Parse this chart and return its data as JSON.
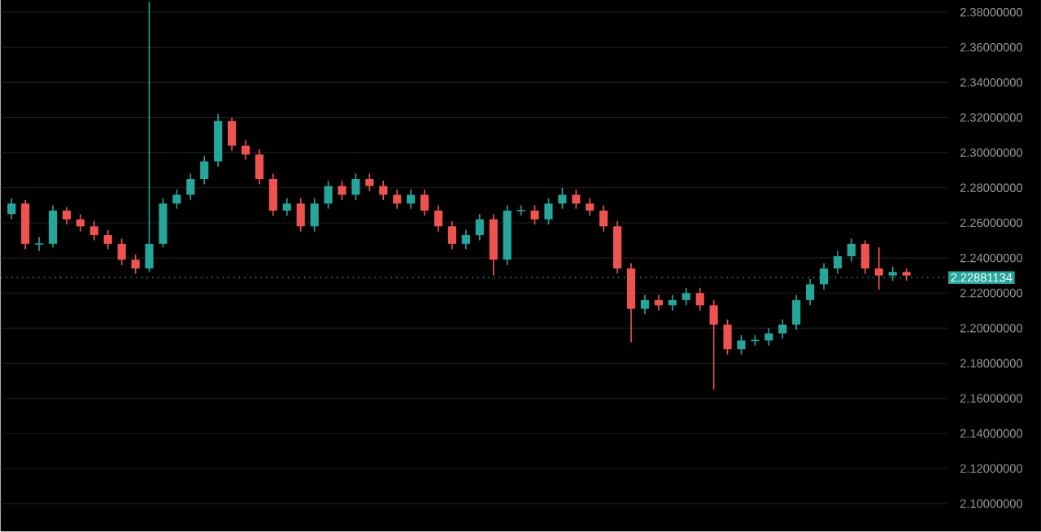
{
  "chart_data": {
    "type": "candlestick",
    "categories": [
      null,
      null,
      null,
      null,
      null,
      null,
      null,
      null,
      null,
      null,
      null,
      null,
      null,
      null,
      null,
      null,
      null,
      null,
      null,
      null,
      null,
      null,
      null,
      null,
      null,
      null,
      null,
      null,
      null,
      null,
      null,
      null,
      null,
      null,
      null,
      null,
      null,
      null,
      null,
      null,
      null,
      null,
      null,
      null,
      null,
      null,
      null,
      null,
      null,
      null,
      null,
      null,
      null,
      null,
      null,
      null,
      null,
      null,
      null,
      null,
      null,
      null,
      null,
      null,
      null,
      null
    ],
    "ohlc": [
      [
        2.265,
        2.274,
        2.262,
        2.271
      ],
      [
        2.271,
        2.273,
        2.245,
        2.248
      ],
      [
        2.248,
        2.252,
        2.244,
        2.248
      ],
      [
        2.248,
        2.27,
        2.246,
        2.267
      ],
      [
        2.267,
        2.269,
        2.259,
        2.262
      ],
      [
        2.262,
        2.265,
        2.255,
        2.258
      ],
      [
        2.258,
        2.261,
        2.25,
        2.253
      ],
      [
        2.253,
        2.256,
        2.245,
        2.248
      ],
      [
        2.248,
        2.251,
        2.236,
        2.239
      ],
      [
        2.239,
        2.242,
        2.231,
        2.234
      ],
      [
        2.234,
        2.386,
        2.232,
        2.248
      ],
      [
        2.248,
        2.274,
        2.246,
        2.271
      ],
      [
        2.271,
        2.279,
        2.268,
        2.276
      ],
      [
        2.276,
        2.288,
        2.273,
        2.285
      ],
      [
        2.285,
        2.298,
        2.282,
        2.295
      ],
      [
        2.295,
        2.322,
        2.292,
        2.318
      ],
      [
        2.318,
        2.32,
        2.301,
        2.304
      ],
      [
        2.304,
        2.307,
        2.296,
        2.299
      ],
      [
        2.299,
        2.302,
        2.282,
        2.285
      ],
      [
        2.285,
        2.288,
        2.264,
        2.267
      ],
      [
        2.267,
        2.274,
        2.264,
        2.271
      ],
      [
        2.271,
        2.274,
        2.255,
        2.258
      ],
      [
        2.258,
        2.274,
        2.255,
        2.271
      ],
      [
        2.271,
        2.284,
        2.268,
        2.281
      ],
      [
        2.281,
        2.284,
        2.273,
        2.276
      ],
      [
        2.276,
        2.288,
        2.273,
        2.285
      ],
      [
        2.285,
        2.288,
        2.278,
        2.281
      ],
      [
        2.281,
        2.284,
        2.273,
        2.276
      ],
      [
        2.276,
        2.279,
        2.268,
        2.271
      ],
      [
        2.271,
        2.279,
        2.268,
        2.276
      ],
      [
        2.276,
        2.279,
        2.264,
        2.267
      ],
      [
        2.267,
        2.27,
        2.255,
        2.258
      ],
      [
        2.258,
        2.261,
        2.245,
        2.248
      ],
      [
        2.248,
        2.256,
        2.245,
        2.253
      ],
      [
        2.253,
        2.265,
        2.25,
        2.262
      ],
      [
        2.262,
        2.265,
        2.23,
        2.239
      ],
      [
        2.239,
        2.27,
        2.236,
        2.267
      ],
      [
        2.267,
        2.27,
        2.264,
        2.267
      ],
      [
        2.267,
        2.27,
        2.259,
        2.262
      ],
      [
        2.262,
        2.274,
        2.259,
        2.271
      ],
      [
        2.271,
        2.28,
        2.268,
        2.276
      ],
      [
        2.276,
        2.279,
        2.268,
        2.271
      ],
      [
        2.271,
        2.274,
        2.264,
        2.267
      ],
      [
        2.267,
        2.27,
        2.255,
        2.258
      ],
      [
        2.258,
        2.261,
        2.231,
        2.234
      ],
      [
        2.234,
        2.237,
        2.192,
        2.211
      ],
      [
        2.211,
        2.219,
        2.208,
        2.216
      ],
      [
        2.216,
        2.219,
        2.21,
        2.213
      ],
      [
        2.213,
        2.219,
        2.21,
        2.216
      ],
      [
        2.216,
        2.223,
        2.213,
        2.22
      ],
      [
        2.22,
        2.223,
        2.21,
        2.213
      ],
      [
        2.213,
        2.216,
        2.165,
        2.202
      ],
      [
        2.202,
        2.205,
        2.185,
        2.188
      ],
      [
        2.188,
        2.196,
        2.185,
        2.193
      ],
      [
        2.193,
        2.196,
        2.19,
        2.193
      ],
      [
        2.193,
        2.2,
        2.19,
        2.197
      ],
      [
        2.197,
        2.205,
        2.194,
        2.202
      ],
      [
        2.202,
        2.219,
        2.199,
        2.216
      ],
      [
        2.216,
        2.228,
        2.213,
        2.225
      ],
      [
        2.225,
        2.237,
        2.222,
        2.234
      ],
      [
        2.234,
        2.244,
        2.231,
        2.241
      ],
      [
        2.241,
        2.251,
        2.238,
        2.248
      ],
      [
        2.248,
        2.25,
        2.231,
        2.234
      ],
      [
        2.234,
        2.246,
        2.222,
        2.23
      ],
      [
        2.23,
        2.235,
        2.227,
        2.232
      ],
      [
        2.232,
        2.234,
        2.227,
        2.23
      ]
    ],
    "colors": [
      "#26a69a",
      "#ef5350",
      "#26a69a",
      "#26a69a",
      "#ef5350",
      "#ef5350",
      "#ef5350",
      "#ef5350",
      "#ef5350",
      "#ef5350",
      "#26a69a",
      "#26a69a",
      "#26a69a",
      "#26a69a",
      "#26a69a",
      "#26a69a",
      "#ef5350",
      "#ef5350",
      "#ef5350",
      "#ef5350",
      "#26a69a",
      "#ef5350",
      "#26a69a",
      "#26a69a",
      "#ef5350",
      "#26a69a",
      "#ef5350",
      "#ef5350",
      "#ef5350",
      "#26a69a",
      "#ef5350",
      "#ef5350",
      "#ef5350",
      "#26a69a",
      "#26a69a",
      "#ef5350",
      "#26a69a",
      "#26a69a",
      "#ef5350",
      "#26a69a",
      "#26a69a",
      "#ef5350",
      "#ef5350",
      "#ef5350",
      "#ef5350",
      "#ef5350",
      "#26a69a",
      "#ef5350",
      "#26a69a",
      "#26a69a",
      "#ef5350",
      "#ef5350",
      "#ef5350",
      "#26a69a",
      "#26a69a",
      "#26a69a",
      "#26a69a",
      "#26a69a",
      "#26a69a",
      "#26a69a",
      "#26a69a",
      "#26a69a",
      "#ef5350",
      "#ef5350",
      "#26a69a",
      "#ef5350"
    ],
    "ylim": [
      2.084,
      2.387
    ],
    "yticks": [
      {
        "value": 2.1,
        "label": "2.10000000"
      },
      {
        "value": 2.12,
        "label": "2.12000000"
      },
      {
        "value": 2.14,
        "label": "2.14000000"
      },
      {
        "value": 2.16,
        "label": "2.16000000"
      },
      {
        "value": 2.18,
        "label": "2.18000000"
      },
      {
        "value": 2.2,
        "label": "2.20000000"
      },
      {
        "value": 2.22,
        "label": "2.22000000"
      },
      {
        "value": 2.24,
        "label": "2.24000000"
      },
      {
        "value": 2.26,
        "label": "2.26000000"
      },
      {
        "value": 2.28,
        "label": "2.28000000"
      },
      {
        "value": 2.3,
        "label": "2.30000000"
      },
      {
        "value": 2.32,
        "label": "2.32000000"
      },
      {
        "value": 2.34,
        "label": "2.34000000"
      },
      {
        "value": 2.36,
        "label": "2.36000000"
      },
      {
        "value": 2.38,
        "label": "2.38000000"
      }
    ],
    "ref_lines": [
      {
        "axis": "y",
        "value": 2.22881134,
        "label": "2.22881134",
        "color": "#26a69a",
        "line_style": "dotted"
      }
    ],
    "grid": "y",
    "tick_labels": "y"
  }
}
